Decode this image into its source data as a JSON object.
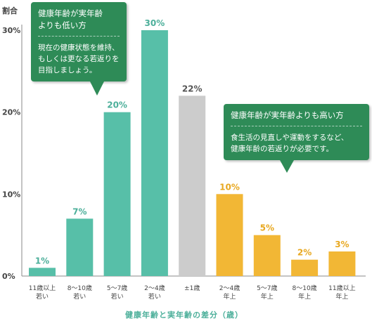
{
  "chart_data": {
    "type": "bar",
    "ylabel": "割合",
    "xlabel": "健康年齢と実年齢の差分（歳）",
    "ylim": [
      0,
      30
    ],
    "yticks": [
      "0%",
      "10%",
      "20%",
      "30%"
    ],
    "categories": [
      [
        "11歳以上",
        "若い"
      ],
      [
        "8～10歳",
        "若い"
      ],
      [
        "5～7歳",
        "若い"
      ],
      [
        "2～4歳",
        "若い"
      ],
      [
        "±1歳"
      ],
      [
        "2～4歳",
        "年上"
      ],
      [
        "5～7歳",
        "年上"
      ],
      [
        "8～10歳",
        "年上"
      ],
      [
        "11歳以上",
        "年上"
      ]
    ],
    "values": [
      1,
      7,
      20,
      30,
      22,
      10,
      5,
      2,
      3
    ],
    "value_labels": [
      "1%",
      "7%",
      "20%",
      "30%",
      "22%",
      "10%",
      "5%",
      "2%",
      "3%"
    ],
    "groups": [
      "younger",
      "younger",
      "younger",
      "younger",
      "same",
      "older",
      "older",
      "older",
      "older"
    ],
    "colors": {
      "younger": "#57bfa8",
      "same": "#cccccc",
      "older": "#f2b735",
      "younger_label": "#4caf9a",
      "same_label": "#555555",
      "older_label": "#e8a820"
    },
    "grid": false
  },
  "callouts": {
    "left": {
      "title_lines": [
        "健康年齢が実年齢",
        "よりも低い方"
      ],
      "body_lines": [
        "現在の健康状態を維持、",
        "もしくは更なる若返りを",
        "目指しましょう。"
      ]
    },
    "right": {
      "title_lines": [
        "健康年齢が実年齢よりも高い方"
      ],
      "body_lines": [
        "食生活の見直しや運動をするなど、",
        "健康年齢の若返りが必要です。"
      ]
    }
  }
}
